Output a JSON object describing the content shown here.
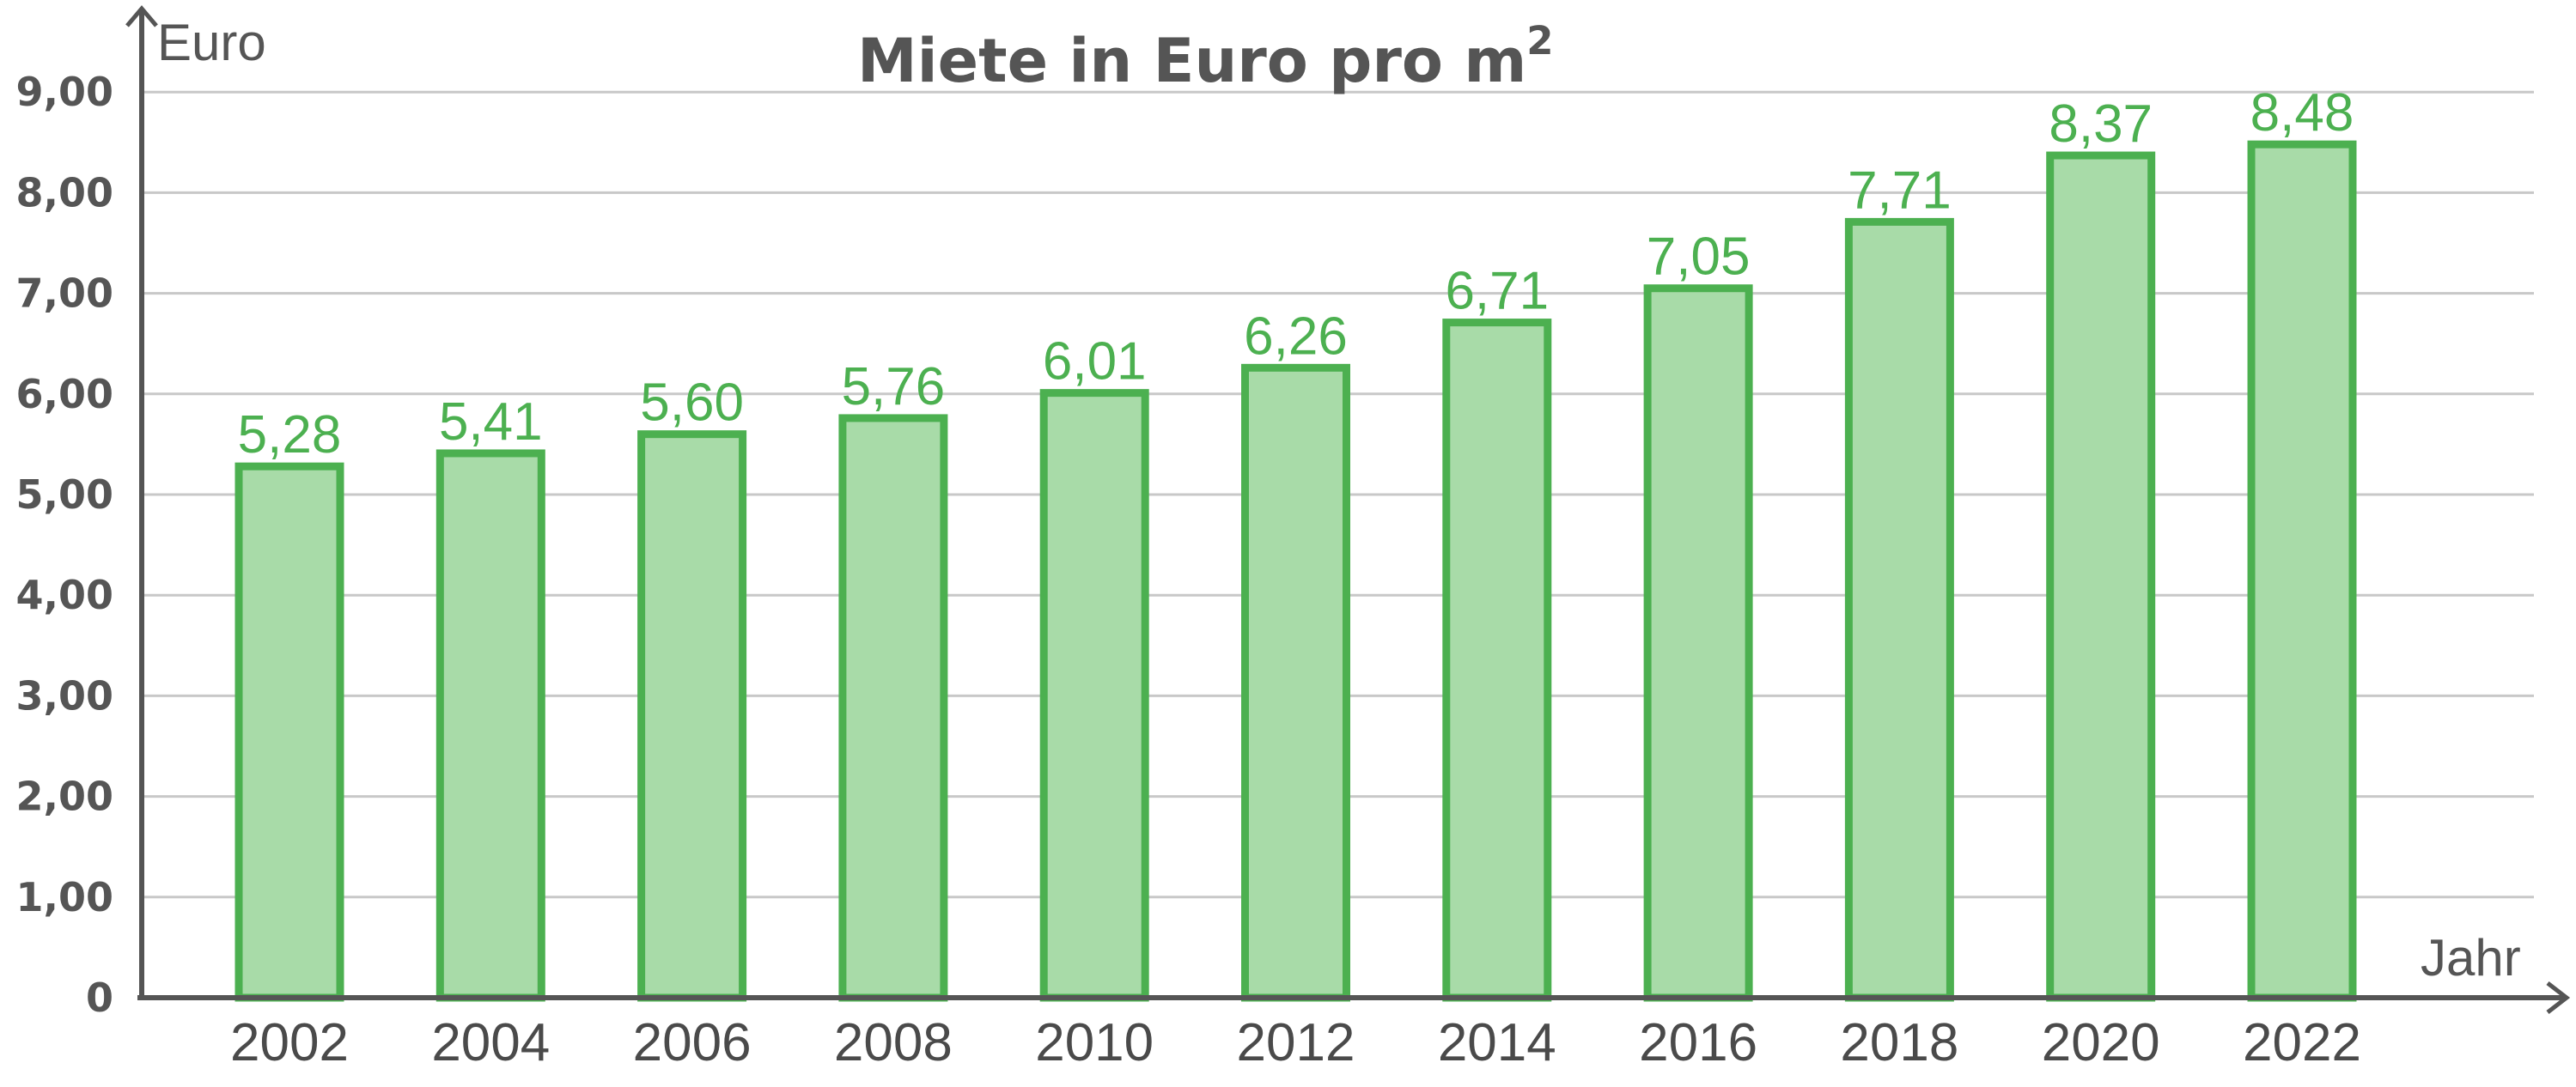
{
  "chart_data": {
    "type": "bar",
    "title": "Miete in Euro pro m",
    "title_superscript": "2",
    "xlabel": "Jahr",
    "ylabel": "Euro",
    "categories": [
      "2002",
      "2004",
      "2006",
      "2008",
      "2010",
      "2012",
      "2014",
      "2016",
      "2018",
      "2020",
      "2022"
    ],
    "values": [
      5.28,
      5.41,
      5.6,
      5.76,
      6.01,
      6.26,
      6.71,
      7.05,
      7.71,
      8.37,
      8.48
    ],
    "value_labels": [
      "5,28",
      "5,41",
      "5,60",
      "5,76",
      "6,01",
      "6,26",
      "6,71",
      "7,05",
      "7,71",
      "8,37",
      "8,48"
    ],
    "yticks": [
      0,
      1,
      2,
      3,
      4,
      5,
      6,
      7,
      8,
      9
    ],
    "ytick_labels": [
      "0",
      "1,00",
      "2,00",
      "3,00",
      "4,00",
      "5,00",
      "6,00",
      "7,00",
      "8,00",
      "9,00"
    ],
    "ylim": [
      0,
      9
    ],
    "grid": true,
    "legend": "none",
    "colors": {
      "bar_fill": "#a8dba8",
      "bar_stroke": "#4cb050",
      "label": "#4cb050",
      "axis": "#555555",
      "grid": "#c8c8c8"
    }
  }
}
